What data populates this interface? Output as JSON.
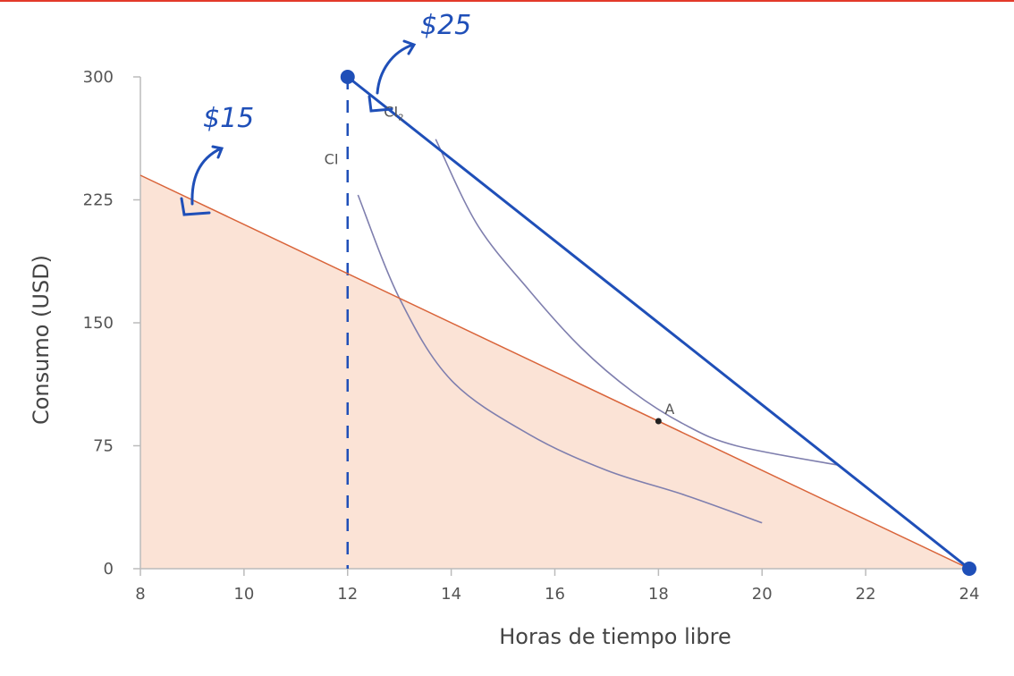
{
  "chart_data": {
    "type": "line",
    "xlabel": "Horas de tiempo libre",
    "ylabel": "Consumo (USD)",
    "xlim": [
      8,
      24
    ],
    "ylim": [
      0,
      300
    ],
    "x_ticks": [
      8,
      10,
      12,
      14,
      16,
      18,
      20,
      22,
      24
    ],
    "y_ticks": [
      0,
      75,
      150,
      225,
      300
    ],
    "colors": {
      "budget_15": "#d9643a",
      "budget_15_fill": "#fbe3d6",
      "budget_25": "#1f4fb8",
      "indifference": "#7f7fae",
      "axis": "#bbbbbb",
      "top_bar": "#e33a2a"
    },
    "budget_lines": [
      {
        "points": [
          [
            8,
            240
          ],
          [
            24,
            0
          ]
        ]
      },
      {
        "points": [
          [
            12,
            300
          ],
          [
            24,
            0
          ]
        ]
      }
    ],
    "indifference_curves": [
      {
        "label": "CI",
        "points": [
          [
            12.2,
            228
          ],
          [
            13,
            165
          ],
          [
            14,
            115
          ],
          [
            15.5,
            82
          ],
          [
            17,
            60
          ],
          [
            18.5,
            45
          ],
          [
            20,
            28
          ]
        ]
      },
      {
        "label": "CI",
        "label_sub": "2",
        "points": [
          [
            13.7,
            262
          ],
          [
            14.5,
            210
          ],
          [
            15.5,
            170
          ],
          [
            16.5,
            135
          ],
          [
            17.5,
            108
          ],
          [
            18.5,
            88
          ],
          [
            19.5,
            75
          ],
          [
            21.5,
            63
          ]
        ]
      }
    ],
    "points": [
      {
        "label": "A",
        "x": 18,
        "y": 90
      }
    ],
    "vertical_dashed_x": 12,
    "annotations": {
      "hand_15": "$15",
      "hand_25": "$25"
    }
  }
}
